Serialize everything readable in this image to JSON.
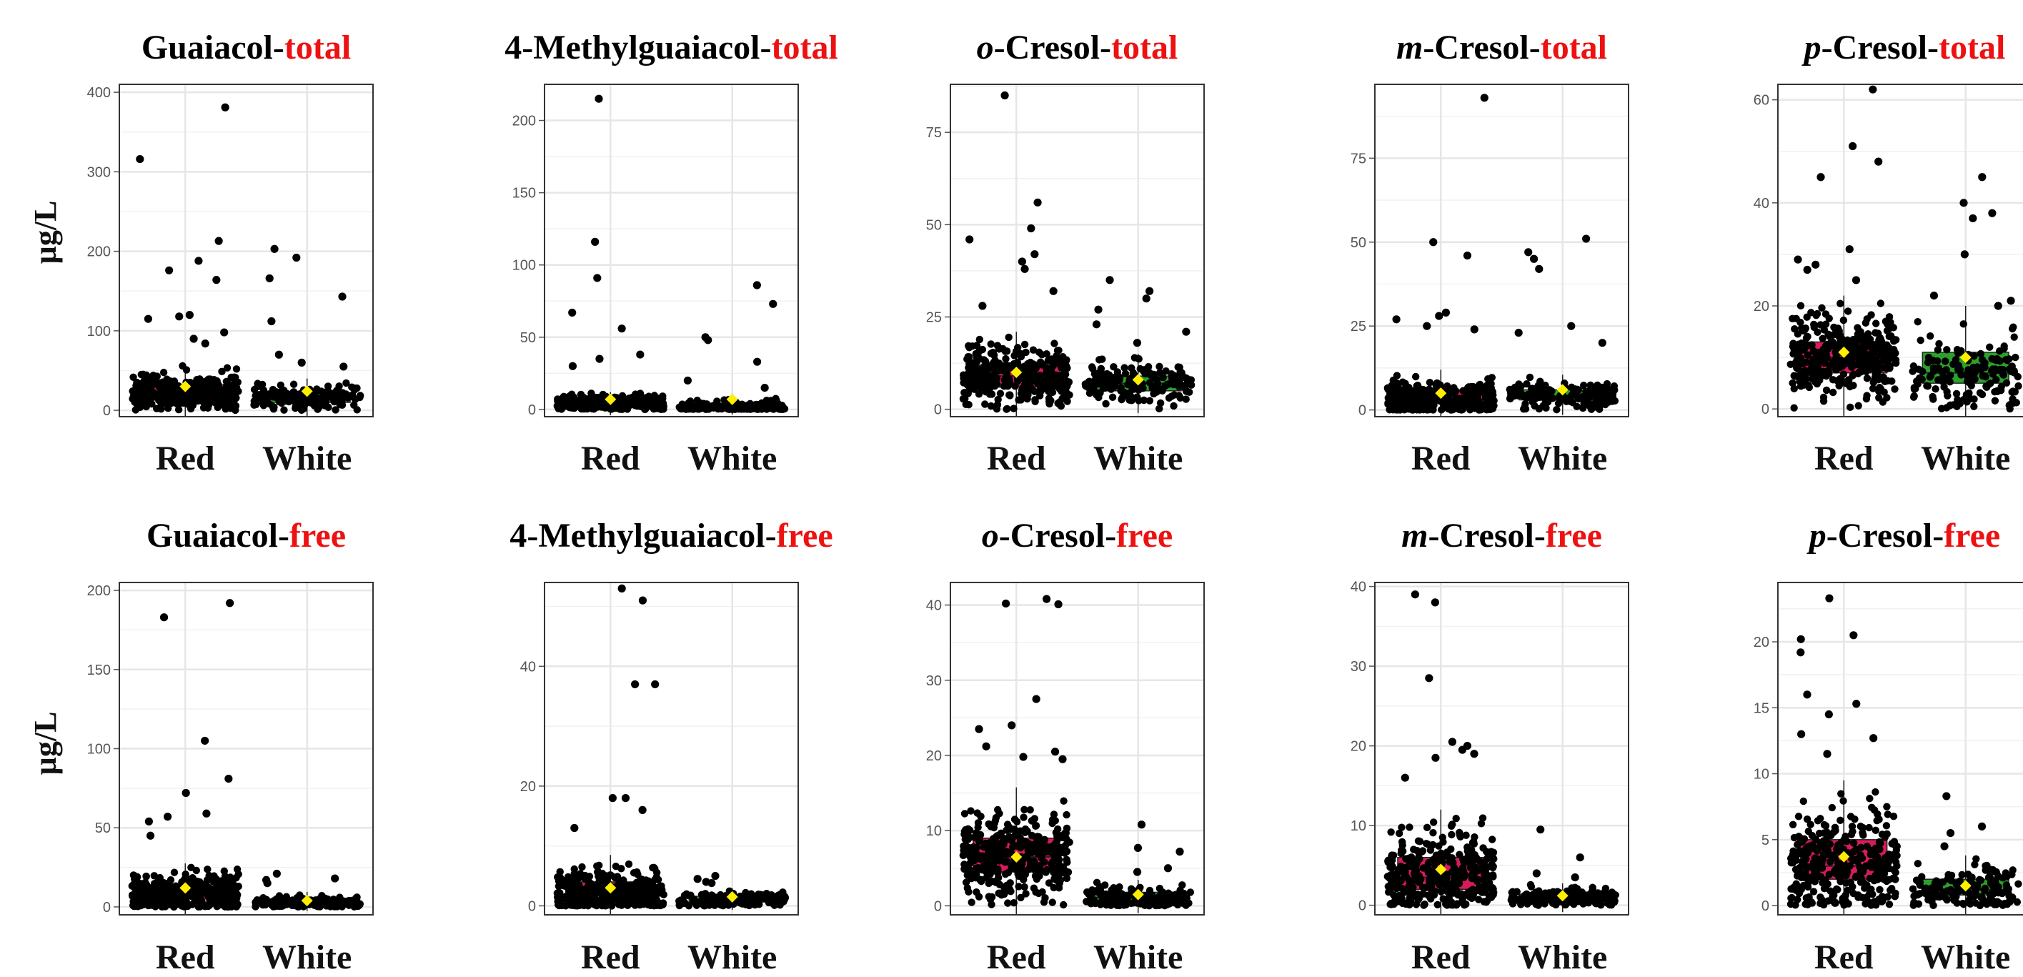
{
  "figure": {
    "y_axis_label": "µg/L",
    "colors": {
      "red_box": "#d81b5a",
      "white_box": "#2ca02c",
      "point": "#000000",
      "mean_marker": "#ffee00",
      "suffix_text": "#ee1111",
      "grid": "#e6e6e6",
      "panel_border": "#333333"
    }
  },
  "chart_data": [
    {
      "type": "box-jitter",
      "title_prefix": "",
      "title_main": "Guaiacol-",
      "title_suffix": "total",
      "categories": [
        "Red",
        "White"
      ],
      "ylim": [
        -8,
        410
      ],
      "yticks": [
        0,
        100,
        200,
        300,
        400
      ],
      "series": [
        {
          "category": "Red",
          "box": {
            "q1": 15,
            "median": 22,
            "q3": 32
          },
          "mean": 30,
          "outliers": [
            176,
            316,
            213,
            188,
            164,
            381,
            118,
            115,
            120,
            98,
            90,
            84
          ]
        },
        {
          "category": "White",
          "box": {
            "q1": 10,
            "median": 15,
            "q3": 22
          },
          "mean": 24,
          "outliers": [
            166,
            203,
            112,
            192,
            143,
            70,
            60,
            55
          ]
        }
      ]
    },
    {
      "type": "box-jitter",
      "title_prefix": "",
      "title_main": "4-Methylguaiacol-",
      "title_suffix": "total",
      "categories": [
        "Red",
        "White"
      ],
      "ylim": [
        -5,
        225
      ],
      "yticks": [
        0,
        50,
        100,
        150,
        200
      ],
      "series": [
        {
          "category": "Red",
          "box": {
            "q1": 2,
            "median": 4,
            "q3": 6
          },
          "mean": 7,
          "outliers": [
            215,
            116,
            91,
            67,
            56,
            35,
            30,
            38
          ]
        },
        {
          "category": "White",
          "box": {
            "q1": 1,
            "median": 2,
            "q3": 4
          },
          "mean": 7,
          "outliers": [
            86,
            73,
            50,
            48,
            33,
            20,
            15
          ]
        }
      ]
    },
    {
      "type": "box-jitter",
      "title_prefix": "o",
      "title_main": "-Cresol-",
      "title_suffix": "total",
      "categories": [
        "Red",
        "White"
      ],
      "ylim": [
        -2,
        88
      ],
      "yticks": [
        0,
        25,
        50,
        75
      ],
      "series": [
        {
          "category": "Red",
          "box": {
            "q1": 6,
            "median": 9,
            "q3": 12
          },
          "mean": 10,
          "outliers": [
            85,
            56,
            49,
            46,
            42,
            40,
            38,
            32,
            28
          ]
        },
        {
          "category": "White",
          "box": {
            "q1": 5,
            "median": 7,
            "q3": 9
          },
          "mean": 8,
          "outliers": [
            35,
            32,
            30,
            27,
            23,
            21,
            18
          ]
        }
      ]
    },
    {
      "type": "box-jitter",
      "title_prefix": "m",
      "title_main": "-Cresol-",
      "title_suffix": "total",
      "categories": [
        "Red",
        "White"
      ],
      "ylim": [
        -2,
        97
      ],
      "yticks": [
        0,
        25,
        50,
        75
      ],
      "series": [
        {
          "category": "Red",
          "box": {
            "q1": 2,
            "median": 3,
            "q3": 6
          },
          "mean": 5,
          "outliers": [
            93,
            50,
            46,
            29,
            28,
            27,
            25,
            24
          ]
        },
        {
          "category": "White",
          "box": {
            "q1": 3,
            "median": 4,
            "q3": 6
          },
          "mean": 6,
          "outliers": [
            51,
            47,
            45,
            42,
            25,
            23,
            20
          ]
        }
      ]
    },
    {
      "type": "box-jitter",
      "title_prefix": "p",
      "title_main": "-Cresol-",
      "title_suffix": "total",
      "categories": [
        "Red",
        "White"
      ],
      "ylim": [
        -1.5,
        63
      ],
      "yticks": [
        0,
        20,
        40,
        60
      ],
      "series": [
        {
          "category": "Red",
          "box": {
            "q1": 7,
            "median": 10,
            "q3": 13
          },
          "mean": 11,
          "outliers": [
            62,
            51,
            48,
            45,
            31,
            29,
            28,
            27,
            25
          ]
        },
        {
          "category": "White",
          "box": {
            "q1": 5,
            "median": 7,
            "q3": 11
          },
          "mean": 10,
          "outliers": [
            45,
            40,
            38,
            37,
            30,
            22,
            21,
            20
          ]
        }
      ]
    },
    {
      "type": "box-jitter",
      "title_prefix": "",
      "title_main": "Guaiacol-",
      "title_suffix": "free",
      "categories": [
        "Red",
        "White"
      ],
      "ylim": [
        -5,
        205
      ],
      "yticks": [
        0,
        50,
        100,
        150,
        200
      ],
      "series": [
        {
          "category": "Red",
          "box": {
            "q1": 5,
            "median": 8,
            "q3": 14
          },
          "mean": 12,
          "outliers": [
            192,
            183,
            105,
            81,
            72,
            59,
            57,
            54,
            45
          ]
        },
        {
          "category": "White",
          "box": {
            "q1": 2,
            "median": 3,
            "q3": 5
          },
          "mean": 4,
          "outliers": [
            21,
            18,
            17,
            15
          ]
        }
      ]
    },
    {
      "type": "box-jitter",
      "title_prefix": "",
      "title_main": "4-Methylguaiacol-",
      "title_suffix": "free",
      "categories": [
        "Red",
        "White"
      ],
      "ylim": [
        -1.5,
        54
      ],
      "yticks": [
        0,
        20,
        40
      ],
      "series": [
        {
          "category": "Red",
          "box": {
            "q1": 1,
            "median": 2,
            "q3": 4
          },
          "mean": 3,
          "outliers": [
            53,
            51,
            37,
            37,
            18,
            18,
            16,
            13
          ]
        },
        {
          "category": "White",
          "box": {
            "q1": 0.7,
            "median": 1,
            "q3": 1.6
          },
          "mean": 1.5,
          "outliers": [
            5,
            4.5,
            4,
            3.8
          ]
        }
      ]
    },
    {
      "type": "box-jitter",
      "title_prefix": "o",
      "title_main": "-Cresol-",
      "title_suffix": "free",
      "categories": [
        "Red",
        "White"
      ],
      "ylim": [
        -1.2,
        43
      ],
      "yticks": [
        0,
        10,
        20,
        30,
        40
      ],
      "series": [
        {
          "category": "Red",
          "box": {
            "q1": 4.5,
            "median": 6.5,
            "q3": 9
          },
          "mean": 6.5,
          "outliers": [
            40.8,
            40.2,
            40.1,
            27.5,
            24,
            23.5,
            21.2,
            20.5,
            19.8,
            19.5
          ]
        },
        {
          "category": "White",
          "box": {
            "q1": 0.7,
            "median": 1.1,
            "q3": 1.8
          },
          "mean": 1.5,
          "outliers": [
            10.8,
            7.7,
            7.2,
            5,
            4.5
          ]
        }
      ]
    },
    {
      "type": "box-jitter",
      "title_prefix": "m",
      "title_main": "-Cresol-",
      "title_suffix": "free",
      "categories": [
        "Red",
        "White"
      ],
      "ylim": [
        -1.2,
        40.5
      ],
      "yticks": [
        0,
        10,
        20,
        30,
        40
      ],
      "series": [
        {
          "category": "Red",
          "box": {
            "q1": 2,
            "median": 3.5,
            "q3": 6
          },
          "mean": 4.5,
          "outliers": [
            39,
            38,
            28.5,
            20.5,
            20,
            19.5,
            19,
            18.5,
            16
          ]
        },
        {
          "category": "White",
          "box": {
            "q1": 0.5,
            "median": 0.9,
            "q3": 1.4
          },
          "mean": 1.2,
          "outliers": [
            9.5,
            6,
            4,
            3.5
          ]
        }
      ]
    },
    {
      "type": "box-jitter",
      "title_prefix": "p",
      "title_main": "-Cresol-",
      "title_suffix": "free",
      "categories": [
        "Red",
        "White"
      ],
      "ylim": [
        -0.7,
        24.5
      ],
      "yticks": [
        0,
        5,
        10,
        15,
        20
      ],
      "series": [
        {
          "category": "Red",
          "box": {
            "q1": 2,
            "median": 3,
            "q3": 5
          },
          "mean": 3.7,
          "outliers": [
            23.3,
            20.5,
            20.2,
            19.2,
            16,
            15.3,
            14.5,
            13,
            12.7,
            11.5
          ]
        },
        {
          "category": "White",
          "box": {
            "q1": 0.8,
            "median": 1.2,
            "q3": 2
          },
          "mean": 1.5,
          "outliers": [
            8.3,
            6,
            5.5,
            4.5
          ]
        }
      ]
    }
  ]
}
